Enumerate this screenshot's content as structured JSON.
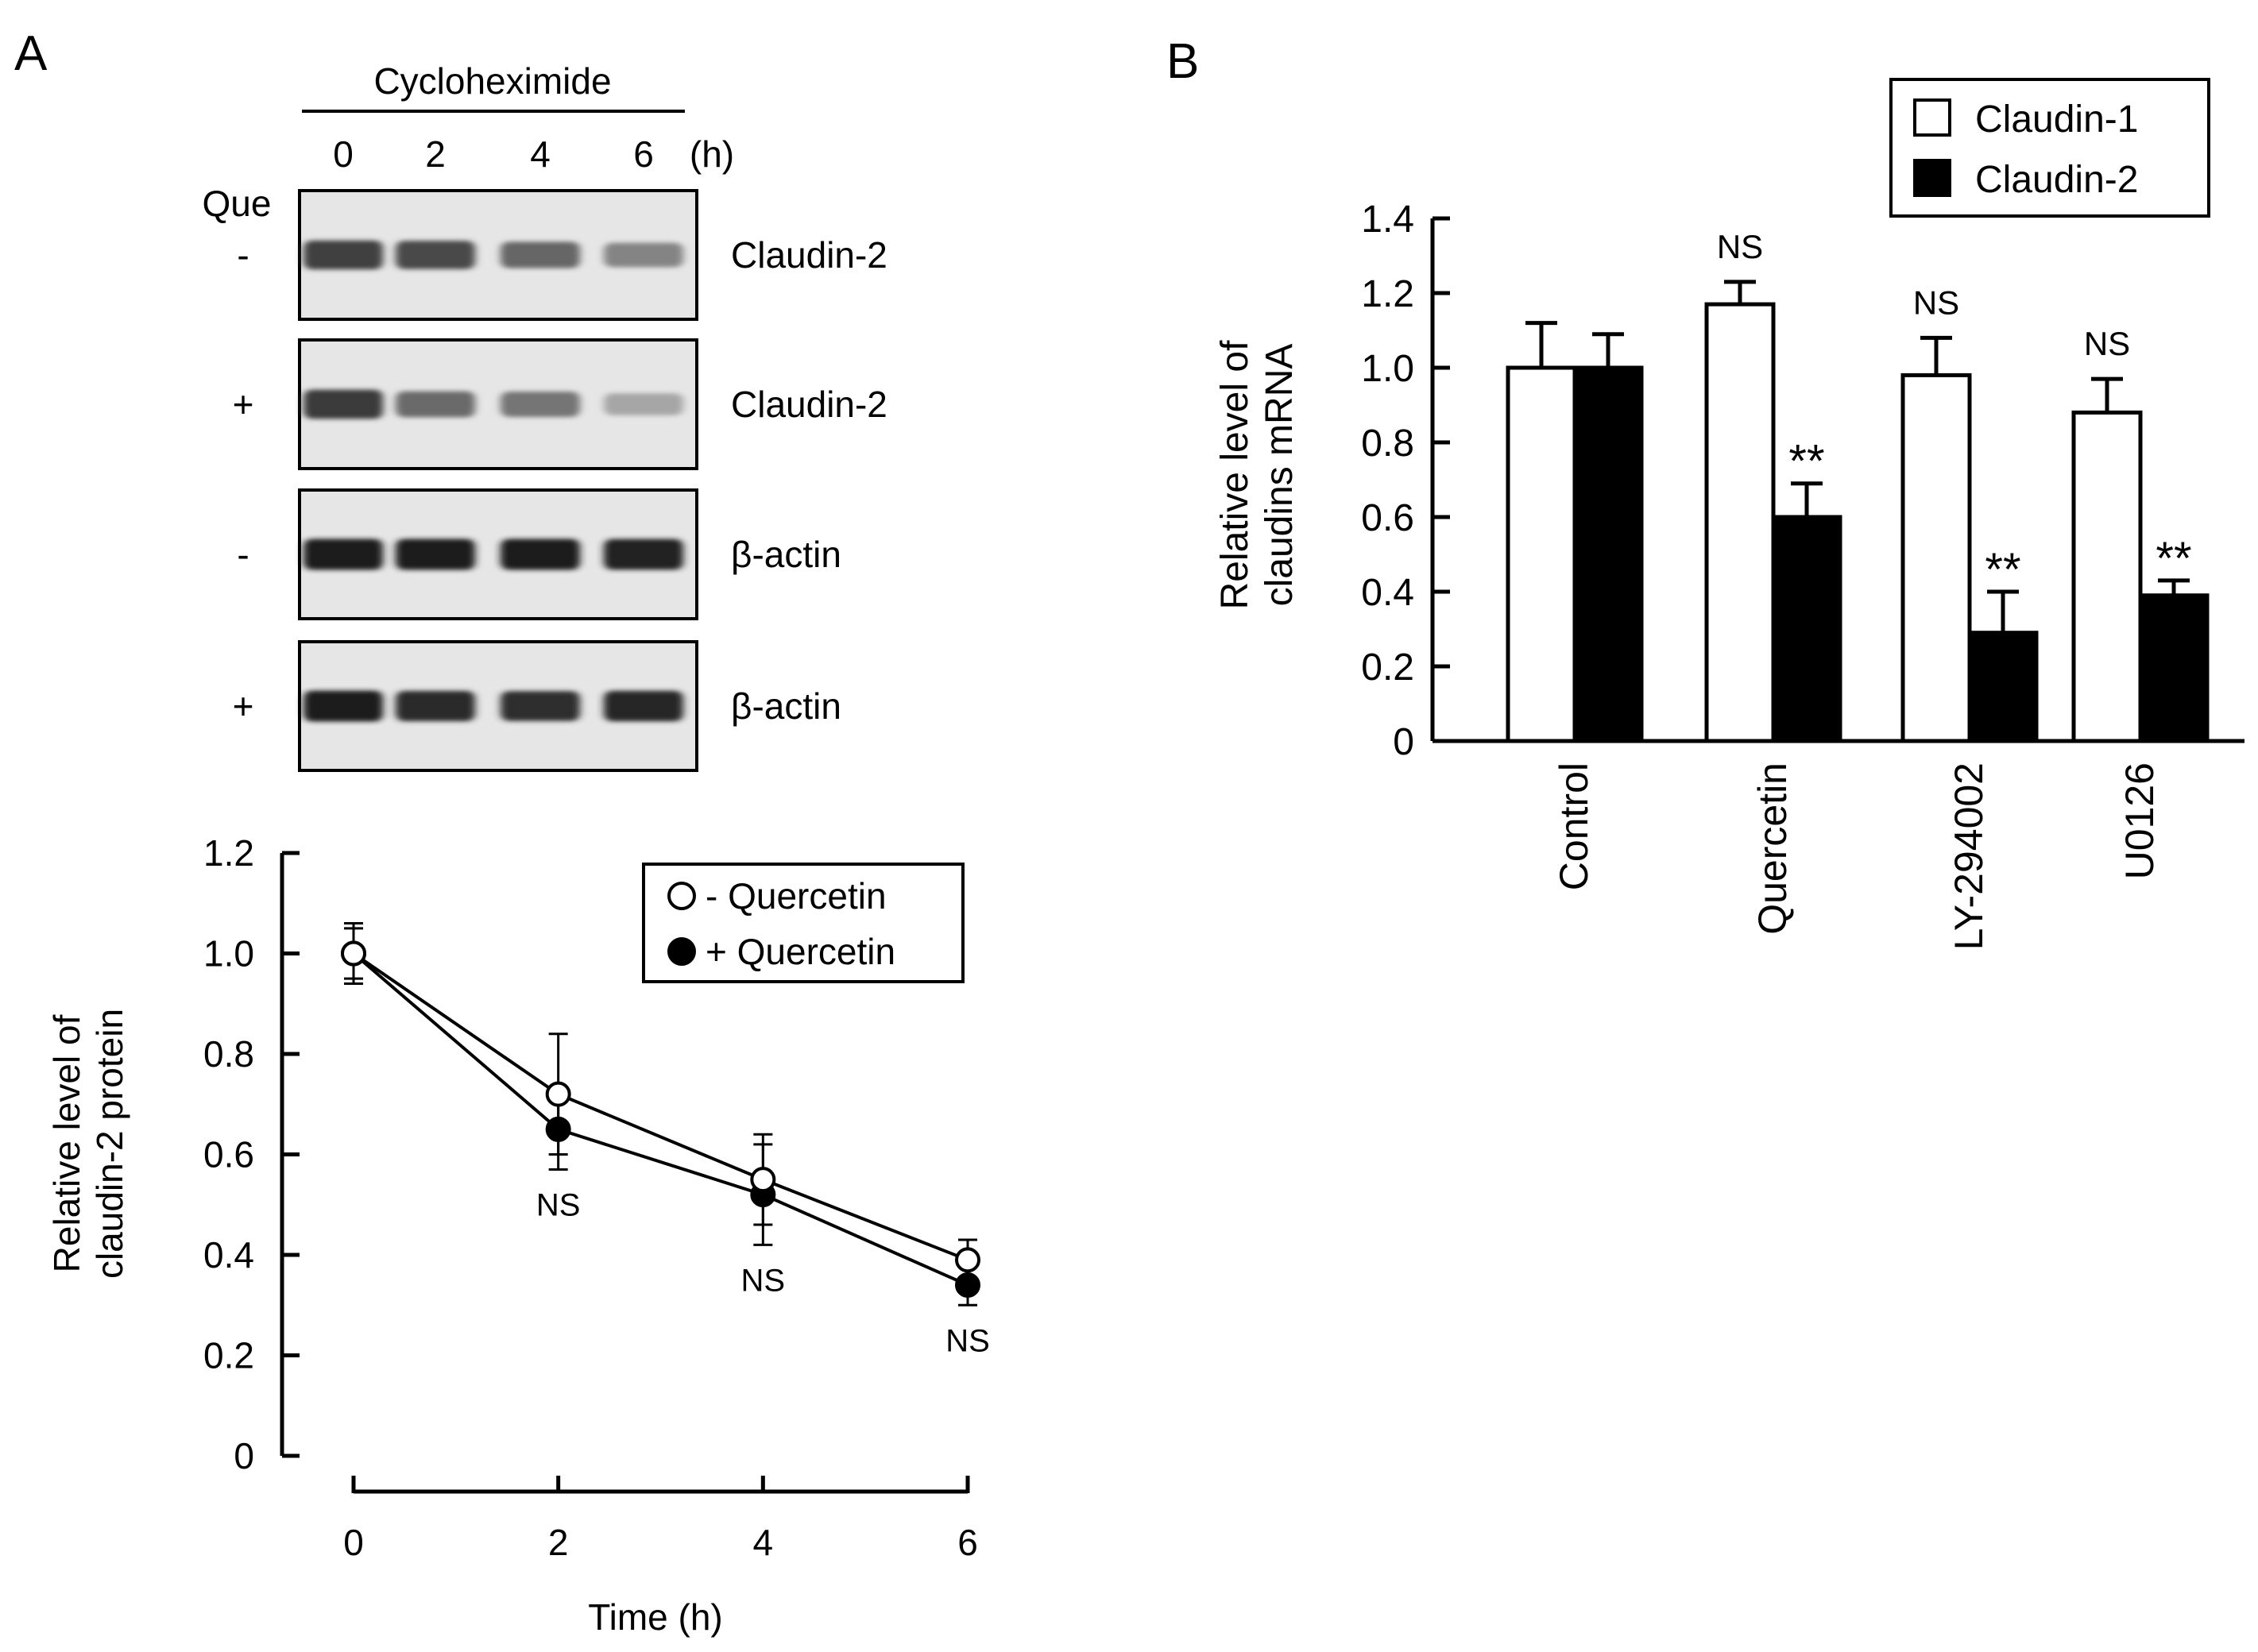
{
  "panel_a": {
    "label": "A",
    "blot": {
      "treatment": "Cycloheximide",
      "time_labels": [
        "0",
        "2",
        "4",
        "6"
      ],
      "time_unit": "(h)",
      "que_label": "Que",
      "rows": [
        {
          "sign": "-",
          "protein": "Claudin-2",
          "intensities": [
            0.8,
            0.76,
            0.62,
            0.48
          ]
        },
        {
          "sign": "+",
          "protein": "Claudin-2",
          "intensities": [
            0.82,
            0.6,
            0.55,
            0.32
          ]
        },
        {
          "sign": "-",
          "protein": "β-actin",
          "intensities": [
            0.95,
            0.95,
            0.95,
            0.93
          ]
        },
        {
          "sign": "+",
          "protein": "β-actin",
          "intensities": [
            0.95,
            0.9,
            0.88,
            0.92
          ]
        }
      ]
    }
  },
  "panel_b": {
    "label": "B"
  },
  "chart_data": [
    {
      "type": "line",
      "xlabel": "Time  (h)",
      "ylabel_lines": [
        "Relative level of",
        "claudin-2 protein"
      ],
      "x": [
        0,
        2,
        4,
        6
      ],
      "x_ticks": [
        "0",
        "2",
        "4",
        "6"
      ],
      "ylim": [
        0,
        1.2
      ],
      "y_ticks": [
        "0",
        "0.2",
        "0.4",
        "0.6",
        "0.8",
        "1.0",
        "1.2"
      ],
      "legend_position": "top-right",
      "series": [
        {
          "name": "- Quercetin",
          "marker": "open-circle",
          "values": [
            1.0,
            0.72,
            0.55,
            0.39
          ],
          "errors": [
            0.06,
            0.12,
            0.09,
            0.04
          ]
        },
        {
          "name": "+ Quercetin",
          "marker": "filled-circle",
          "values": [
            1.0,
            0.65,
            0.52,
            0.34
          ],
          "errors": [
            0.05,
            0.08,
            0.1,
            0.04
          ]
        }
      ],
      "annotations": [
        {
          "x": 2,
          "text": "NS"
        },
        {
          "x": 4,
          "text": "NS"
        },
        {
          "x": 6,
          "text": "NS"
        }
      ]
    },
    {
      "type": "bar",
      "ylabel_lines": [
        "Relative level of",
        "claudins mRNA"
      ],
      "categories": [
        "Control",
        "Quercetin",
        "LY-294002",
        "U0126"
      ],
      "ylim": [
        0,
        1.4
      ],
      "y_ticks": [
        "0",
        "0.2",
        "0.4",
        "0.6",
        "0.8",
        "1.0",
        "1.2",
        "1.4"
      ],
      "legend_position": "top-right",
      "series": [
        {
          "name": "Claudin-1",
          "fill": "#ffffff",
          "values": [
            1.0,
            1.17,
            0.98,
            0.88
          ],
          "errors": [
            0.12,
            0.06,
            0.1,
            0.09
          ]
        },
        {
          "name": "Claudin-2",
          "fill": "#000000",
          "values": [
            1.0,
            0.6,
            0.29,
            0.39
          ],
          "errors": [
            0.09,
            0.09,
            0.11,
            0.04
          ]
        }
      ],
      "annotations": [
        {
          "category": 1,
          "series": 0,
          "text": "NS"
        },
        {
          "category": 1,
          "series": 1,
          "text": "**"
        },
        {
          "category": 2,
          "series": 0,
          "text": "NS"
        },
        {
          "category": 2,
          "series": 1,
          "text": "**"
        },
        {
          "category": 3,
          "series": 0,
          "text": "NS"
        },
        {
          "category": 3,
          "series": 1,
          "text": "**"
        }
      ]
    }
  ]
}
